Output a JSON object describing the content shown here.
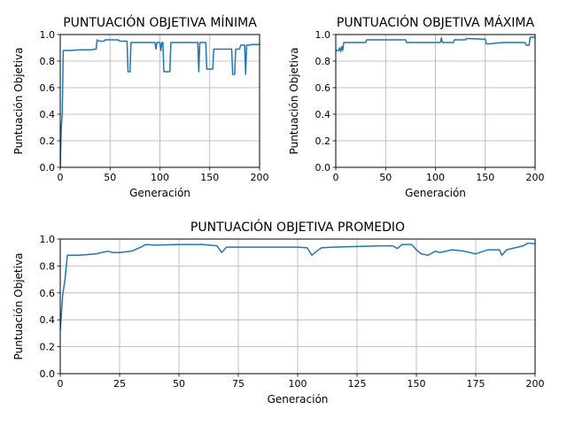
{
  "chart_data": [
    {
      "type": "line",
      "title": "PUNTUACIÓN OBJETIVA MÍNIMA",
      "xlabel": "Generación",
      "ylabel": "Puntuación Objetiva",
      "xlim": [
        0,
        200
      ],
      "ylim": [
        0,
        1.0
      ],
      "xticks": [
        "0",
        "50",
        "100",
        "150",
        "200"
      ],
      "yticks": [
        "0.0",
        "0.2",
        "0.4",
        "0.6",
        "0.8",
        "1.0"
      ],
      "grid": true,
      "series": [
        {
          "color": "#1f77b4",
          "points": [
            [
              0,
              0.0
            ],
            [
              1,
              0.3
            ],
            [
              2,
              0.4
            ],
            [
              3,
              0.88
            ],
            [
              10,
              0.88
            ],
            [
              20,
              0.885
            ],
            [
              30,
              0.885
            ],
            [
              36,
              0.89
            ],
            [
              37,
              0.96
            ],
            [
              39,
              0.95
            ],
            [
              44,
              0.95
            ],
            [
              45,
              0.96
            ],
            [
              58,
              0.96
            ],
            [
              60,
              0.95
            ],
            [
              67,
              0.95
            ],
            [
              68,
              0.72
            ],
            [
              70,
              0.72
            ],
            [
              71,
              0.94
            ],
            [
              95,
              0.94
            ],
            [
              96,
              0.89
            ],
            [
              97,
              0.94
            ],
            [
              100,
              0.94
            ],
            [
              101,
              0.88
            ],
            [
              102,
              0.94
            ],
            [
              103,
              0.94
            ],
            [
              104,
              0.72
            ],
            [
              110,
              0.72
            ],
            [
              111,
              0.94
            ],
            [
              138,
              0.94
            ],
            [
              139,
              0.72
            ],
            [
              140,
              0.94
            ],
            [
              146,
              0.94
            ],
            [
              147,
              0.74
            ],
            [
              153,
              0.74
            ],
            [
              154,
              0.89
            ],
            [
              172,
              0.89
            ],
            [
              173,
              0.7
            ],
            [
              175,
              0.7
            ],
            [
              176,
              0.89
            ],
            [
              180,
              0.89
            ],
            [
              181,
              0.92
            ],
            [
              185,
              0.92
            ],
            [
              186,
              0.7
            ],
            [
              187,
              0.92
            ],
            [
              191,
              0.92
            ],
            [
              192,
              0.925
            ],
            [
              200,
              0.925
            ]
          ]
        }
      ]
    },
    {
      "type": "line",
      "title": "PUNTUACIÓN OBJETIVA MÁXIMA",
      "xlabel": "Generación",
      "ylabel": "Puntuación Objetiva",
      "xlim": [
        0,
        200
      ],
      "ylim": [
        0,
        1.0
      ],
      "xticks": [
        "0",
        "50",
        "100",
        "150",
        "200"
      ],
      "yticks": [
        "0.0",
        "0.2",
        "0.4",
        "0.6",
        "0.8",
        "1.0"
      ],
      "grid": true,
      "series": [
        {
          "color": "#1f77b4",
          "points": [
            [
              0,
              0.88
            ],
            [
              3,
              0.88
            ],
            [
              4,
              0.9
            ],
            [
              5,
              0.87
            ],
            [
              6,
              0.91
            ],
            [
              7,
              0.88
            ],
            [
              8,
              0.94
            ],
            [
              30,
              0.94
            ],
            [
              31,
              0.96
            ],
            [
              70,
              0.96
            ],
            [
              71,
              0.94
            ],
            [
              105,
              0.94
            ],
            [
              106,
              0.975
            ],
            [
              107,
              0.94
            ],
            [
              118,
              0.94
            ],
            [
              119,
              0.96
            ],
            [
              130,
              0.96
            ],
            [
              131,
              0.97
            ],
            [
              150,
              0.965
            ],
            [
              151,
              0.93
            ],
            [
              155,
              0.93
            ],
            [
              160,
              0.935
            ],
            [
              168,
              0.94
            ],
            [
              190,
              0.94
            ],
            [
              191,
              0.92
            ],
            [
              194,
              0.92
            ],
            [
              195,
              0.98
            ],
            [
              200,
              0.98
            ]
          ]
        }
      ]
    },
    {
      "type": "line",
      "title": "PUNTUACIÓN OBJETIVA PROMEDIO",
      "xlabel": "Generación",
      "ylabel": "Puntuación Objetiva",
      "xlim": [
        0,
        200
      ],
      "ylim": [
        0,
        1.0
      ],
      "xticks": [
        "0",
        "25",
        "50",
        "75",
        "100",
        "125",
        "150",
        "175",
        "200"
      ],
      "yticks": [
        "0.0",
        "0.2",
        "0.4",
        "0.6",
        "0.8",
        "1.0"
      ],
      "grid": true,
      "series": [
        {
          "color": "#1f77b4",
          "points": [
            [
              0,
              0.32
            ],
            [
              1,
              0.58
            ],
            [
              2,
              0.7
            ],
            [
              3,
              0.88
            ],
            [
              8,
              0.88
            ],
            [
              15,
              0.89
            ],
            [
              20,
              0.91
            ],
            [
              22,
              0.9
            ],
            [
              25,
              0.9
            ],
            [
              30,
              0.91
            ],
            [
              34,
              0.94
            ],
            [
              36,
              0.96
            ],
            [
              40,
              0.955
            ],
            [
              50,
              0.96
            ],
            [
              60,
              0.96
            ],
            [
              66,
              0.95
            ],
            [
              68,
              0.9
            ],
            [
              70,
              0.94
            ],
            [
              80,
              0.94
            ],
            [
              90,
              0.94
            ],
            [
              100,
              0.94
            ],
            [
              104,
              0.935
            ],
            [
              106,
              0.88
            ],
            [
              108,
              0.91
            ],
            [
              110,
              0.935
            ],
            [
              115,
              0.94
            ],
            [
              125,
              0.945
            ],
            [
              135,
              0.95
            ],
            [
              140,
              0.95
            ],
            [
              142,
              0.93
            ],
            [
              144,
              0.96
            ],
            [
              148,
              0.96
            ],
            [
              150,
              0.92
            ],
            [
              152,
              0.89
            ],
            [
              155,
              0.88
            ],
            [
              158,
              0.91
            ],
            [
              160,
              0.9
            ],
            [
              165,
              0.92
            ],
            [
              170,
              0.91
            ],
            [
              175,
              0.89
            ],
            [
              180,
              0.92
            ],
            [
              185,
              0.92
            ],
            [
              186,
              0.88
            ],
            [
              188,
              0.92
            ],
            [
              195,
              0.95
            ],
            [
              197,
              0.97
            ],
            [
              200,
              0.965
            ]
          ]
        }
      ]
    }
  ]
}
